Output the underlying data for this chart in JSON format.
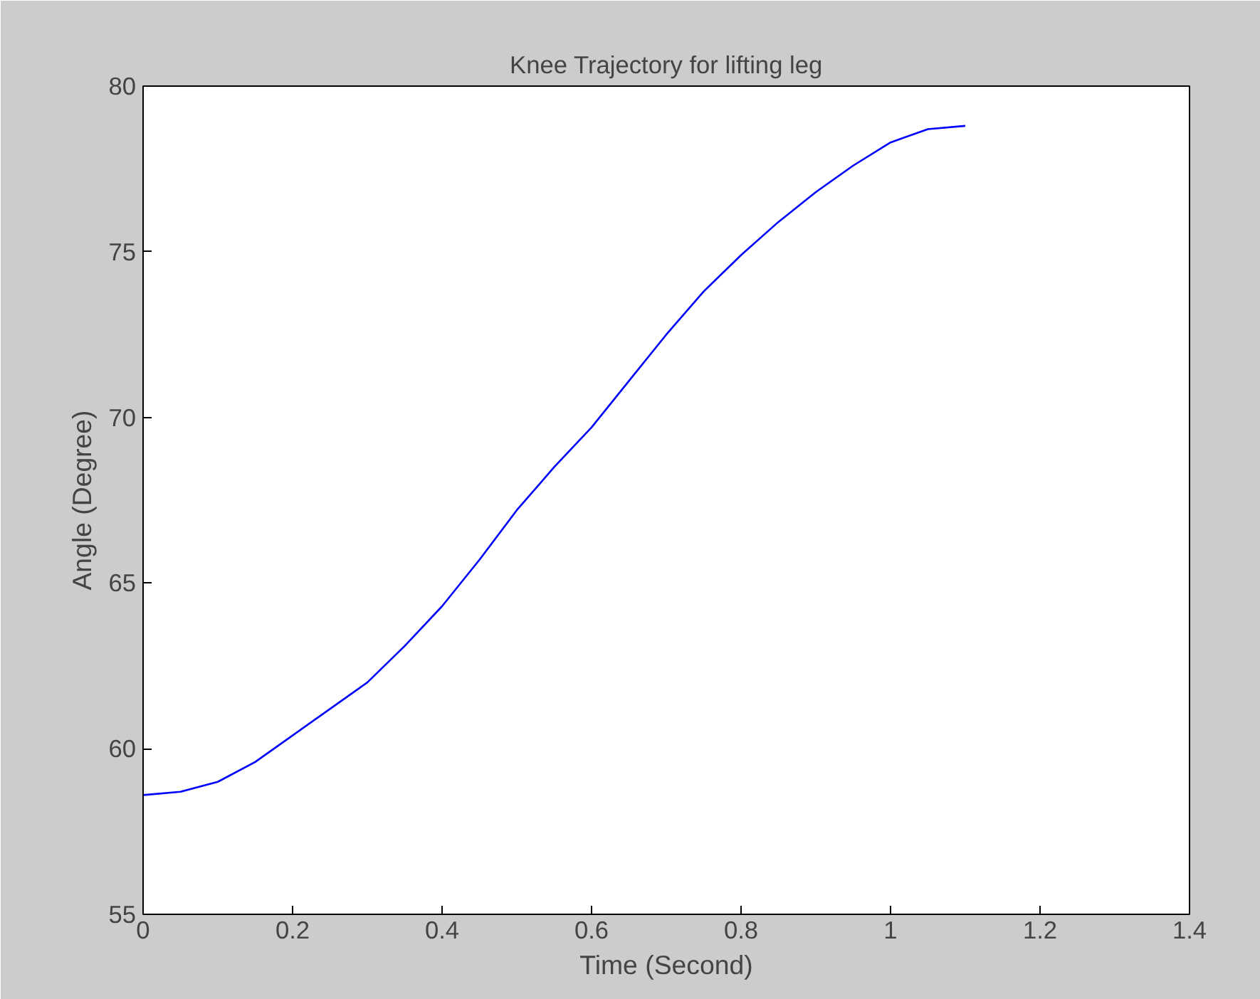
{
  "chart_data": {
    "type": "line",
    "title": "Knee Trajectory for lifting leg",
    "xlabel": "Time (Second)",
    "ylabel": "Angle (Degree)",
    "x": [
      0,
      0.05,
      0.1,
      0.15,
      0.2,
      0.25,
      0.3,
      0.35,
      0.4,
      0.45,
      0.5,
      0.55,
      0.6,
      0.65,
      0.7,
      0.75,
      0.8,
      0.85,
      0.9,
      0.95,
      1.0,
      1.05,
      1.1
    ],
    "series": [
      {
        "color": "#0000ff",
        "values": [
          58.6,
          58.7,
          59.0,
          59.6,
          60.4,
          61.2,
          62.0,
          63.1,
          64.3,
          65.7,
          67.2,
          68.5,
          69.7,
          71.1,
          72.5,
          73.8,
          74.9,
          75.9,
          76.8,
          77.6,
          78.3,
          78.7,
          78.8
        ]
      }
    ],
    "xlim": [
      0,
      1.4
    ],
    "ylim": [
      55,
      80
    ],
    "xticks": [
      0,
      0.2,
      0.4,
      0.6,
      0.8,
      1,
      1.2,
      1.4
    ],
    "yticks": [
      55,
      60,
      65,
      70,
      75,
      80
    ],
    "line_style": "solid",
    "marker": "none"
  }
}
